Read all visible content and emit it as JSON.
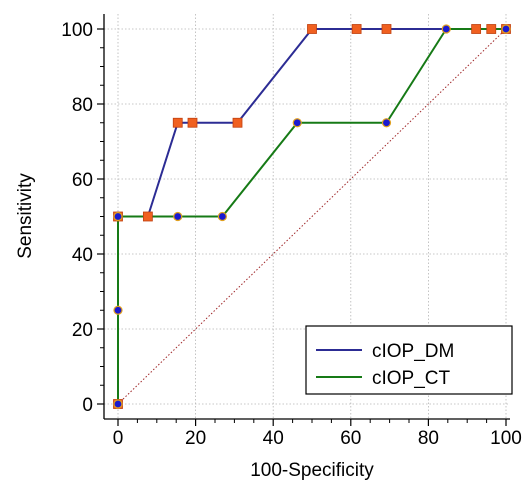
{
  "chart_data": {
    "type": "line",
    "title": "",
    "xlabel": "100-Specificity",
    "ylabel": "Sensitivity",
    "xlim": [
      0,
      100
    ],
    "ylim": [
      0,
      100
    ],
    "x_ticks": [
      "0",
      "20",
      "40",
      "60",
      "80",
      "100"
    ],
    "y_ticks": [
      "0",
      "20",
      "40",
      "60",
      "80",
      "100"
    ],
    "grid": true,
    "legend_position": "bottom-right",
    "reference_line": {
      "x": [
        0,
        100
      ],
      "y": [
        0,
        100
      ],
      "color": "#a0282a",
      "style": "dotted"
    },
    "series": [
      {
        "name": "cIOP_DM",
        "color": "#2c2c94",
        "marker": "square",
        "marker_color": "#f06020",
        "marker_edge": "#c04010",
        "x": [
          0,
          0,
          7.7,
          15.4,
          19.2,
          30.8,
          50,
          61.5,
          69.2,
          92.3,
          96.2,
          100
        ],
        "y": [
          0,
          50,
          50,
          75,
          75,
          75,
          100,
          100,
          100,
          100,
          100,
          100
        ]
      },
      {
        "name": "cIOP_CT",
        "color": "#167a16",
        "marker": "circle",
        "marker_color": "#1a1ad0",
        "marker_edge": "#e0a020",
        "x": [
          0,
          0,
          0,
          15.4,
          26.9,
          46.2,
          69.2,
          84.6,
          100
        ],
        "y": [
          0,
          25,
          50,
          50,
          50,
          75,
          75,
          100,
          100
        ]
      }
    ]
  }
}
